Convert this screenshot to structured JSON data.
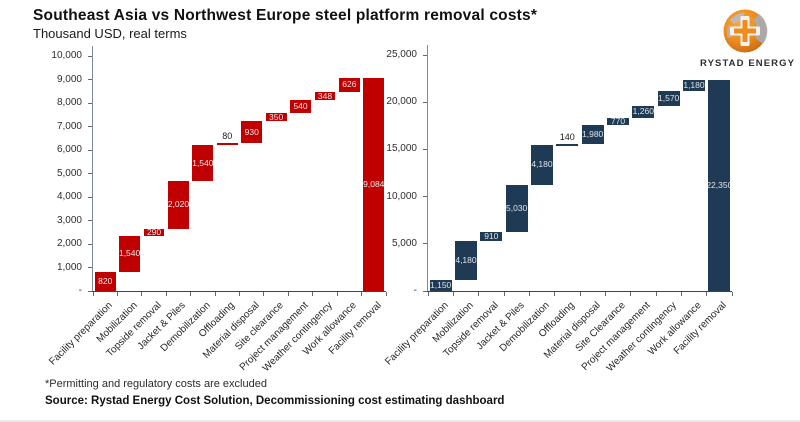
{
  "header": {
    "title": "Southeast Asia vs Northwest Europe steel platform removal costs*",
    "subtitle": "Thousand USD, real terms"
  },
  "logo": {
    "brand": "RYSTAD ENERGY"
  },
  "footer": {
    "footnote": "*Permitting and regulatory costs are excluded",
    "source": "Source: Rystad Energy Cost Solution, Decommissioning cost estimating dashboard"
  },
  "chart_data": [
    {
      "type": "bar",
      "subtype": "waterfall",
      "region": "left",
      "categories": [
        "Facility preparation",
        "Mobilization",
        "Topside removal",
        "Jacket & Piles",
        "Demobilization",
        "Offloading",
        "Material disposal",
        "Site clearance",
        "Project management",
        "Weather contingency",
        "Work allowance",
        "Facility removal"
      ],
      "values": [
        820,
        1540,
        290,
        2020,
        1540,
        80,
        930,
        350,
        540,
        348,
        626,
        9084
      ],
      "last_bar_is_total": true,
      "ylim": [
        0,
        10000
      ],
      "ytick_step": 1000,
      "zero_tick_label": "-",
      "grid": false,
      "legend": "none",
      "bar_color": "#c00000",
      "inside_label_color": "#e9e9e9",
      "outside_label_color": "#1a1a1a"
    },
    {
      "type": "bar",
      "subtype": "waterfall",
      "region": "right",
      "categories": [
        "Facility preparation",
        "Mobilization",
        "Topside removal",
        "Jacket & Piles",
        "Demobilization",
        "Offloading",
        "Material disposal",
        "Site Clearance",
        "Project management",
        "Weather contingency",
        "Work allowance",
        "Facility removal"
      ],
      "values": [
        1150,
        4180,
        910,
        5030,
        4180,
        140,
        1980,
        770,
        1260,
        1570,
        1180,
        22350
      ],
      "last_bar_is_total": true,
      "ylim": [
        0,
        25000
      ],
      "ytick_step": 5000,
      "zero_tick_label": "-",
      "grid": false,
      "legend": "none",
      "bar_color": "#1e3a54",
      "inside_label_color": "#dfe3e8",
      "outside_label_color": "#1a1a1a"
    }
  ]
}
